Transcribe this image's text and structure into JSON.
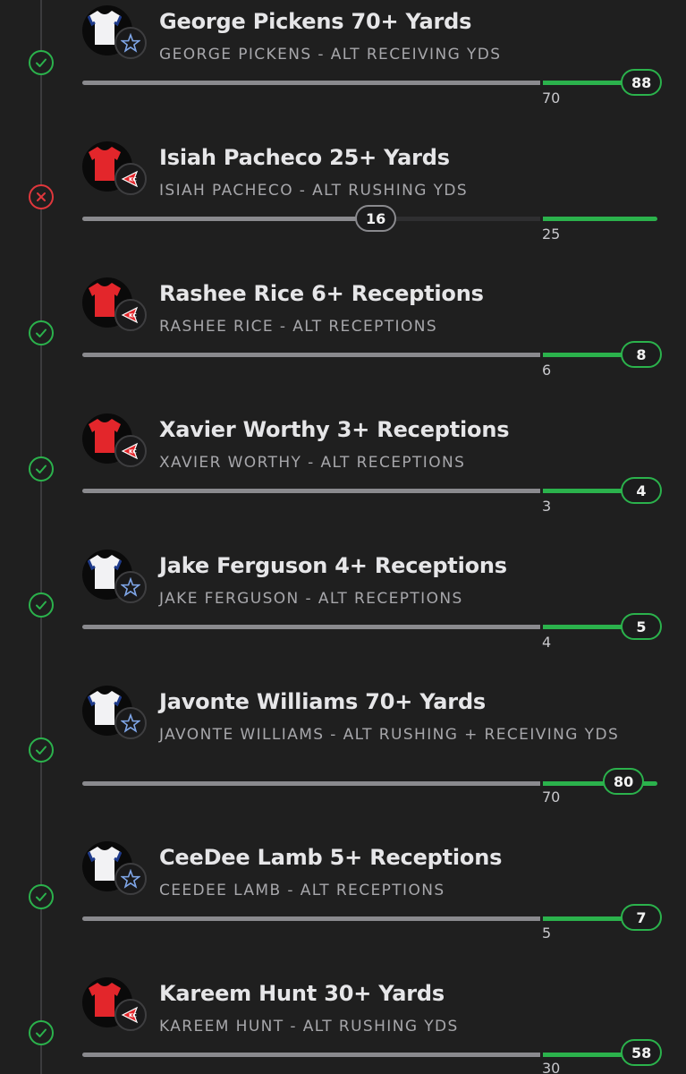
{
  "colors": {
    "win": "#2bb24c",
    "loss": "#e0373c",
    "track": "#8a8a8e",
    "background": "#1f1f1f"
  },
  "legs": [
    {
      "title": "George Pickens 70+ Yards",
      "subtitle": "GEORGE PICKENS - ALT RECEIVING YDS",
      "target": "70",
      "actual": "88",
      "status": "win",
      "status_icon": "check-icon",
      "jersey": "white",
      "team_logo": "star-icon"
    },
    {
      "title": "Isiah Pacheco 25+ Yards",
      "subtitle": "ISIAH PACHECO - ALT RUSHING YDS",
      "target": "25",
      "actual": "16",
      "status": "loss",
      "status_icon": "x-icon",
      "jersey": "red",
      "team_logo": "arrowhead-icon"
    },
    {
      "title": "Rashee Rice 6+ Receptions",
      "subtitle": "RASHEE RICE - ALT RECEPTIONS",
      "target": "6",
      "actual": "8",
      "status": "win",
      "status_icon": "check-icon",
      "jersey": "red",
      "team_logo": "arrowhead-icon"
    },
    {
      "title": "Xavier Worthy 3+ Receptions",
      "subtitle": "XAVIER WORTHY - ALT RECEPTIONS",
      "target": "3",
      "actual": "4",
      "status": "win",
      "status_icon": "check-icon",
      "jersey": "red",
      "team_logo": "arrowhead-icon"
    },
    {
      "title": "Jake Ferguson 4+ Receptions",
      "subtitle": "JAKE FERGUSON - ALT RECEPTIONS",
      "target": "4",
      "actual": "5",
      "status": "win",
      "status_icon": "check-icon",
      "jersey": "white",
      "team_logo": "star-icon"
    },
    {
      "title": "Javonte Williams 70+ Yards",
      "subtitle": "JAVONTE WILLIAMS - ALT RUSHING + RECEIVING YDS",
      "target": "70",
      "actual": "80",
      "status": "win",
      "status_icon": "check-icon",
      "jersey": "white",
      "team_logo": "star-icon"
    },
    {
      "title": "CeeDee Lamb 5+ Receptions",
      "subtitle": "CEEDEE LAMB - ALT RECEPTIONS",
      "target": "5",
      "actual": "7",
      "status": "win",
      "status_icon": "check-icon",
      "jersey": "white",
      "team_logo": "star-icon"
    },
    {
      "title": "Kareem Hunt 30+ Yards",
      "subtitle": "KAREEM HUNT - ALT RUSHING YDS",
      "target": "30",
      "actual": "58",
      "status": "win",
      "status_icon": "check-icon",
      "jersey": "red",
      "team_logo": "arrowhead-icon"
    }
  ]
}
